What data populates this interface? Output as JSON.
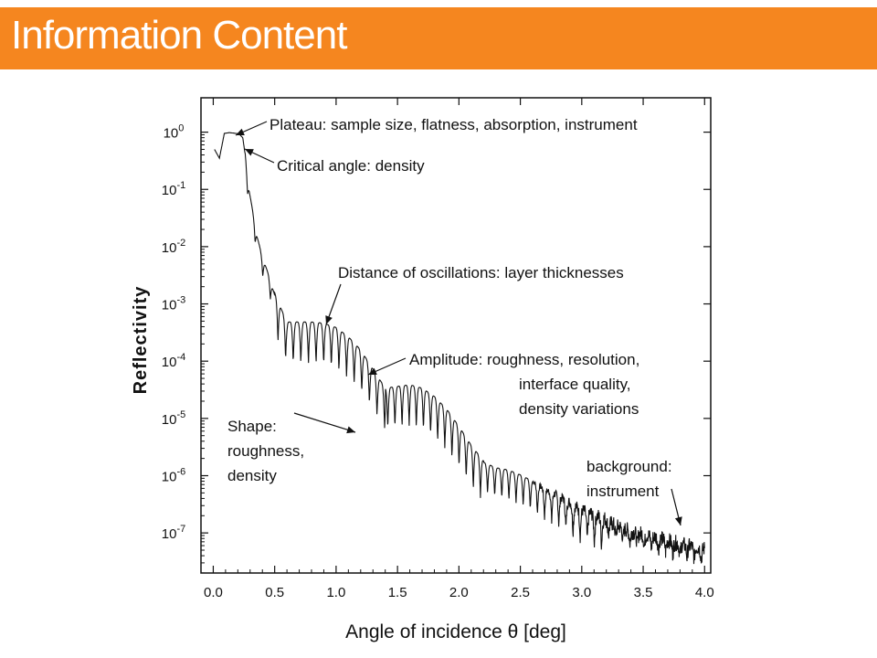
{
  "slide": {
    "title": "Information Content"
  },
  "chart_data": {
    "type": "line",
    "xlabel": "Angle of incidence  θ [deg]",
    "ylabel": "Reflectivity",
    "xlim": [
      -0.1,
      4.05
    ],
    "ylim_log10": [
      -7.7,
      0.6
    ],
    "yscale": "log",
    "x_ticks": [
      "0.0",
      "0.5",
      "1.0",
      "1.5",
      "2.0",
      "2.5",
      "3.0",
      "3.5",
      "4.0"
    ],
    "y_ticks": [
      {
        "base": "10",
        "exp": "0"
      },
      {
        "base": "10",
        "exp": "-1"
      },
      {
        "base": "10",
        "exp": "-2"
      },
      {
        "base": "10",
        "exp": "-3"
      },
      {
        "base": "10",
        "exp": "-4"
      },
      {
        "base": "10",
        "exp": "-5"
      },
      {
        "base": "10",
        "exp": "-6"
      },
      {
        "base": "10",
        "exp": "-7"
      }
    ],
    "grid": false,
    "legend": "none",
    "series": [
      {
        "x": [
          0.01,
          0.05,
          0.09,
          0.13,
          0.17,
          0.21,
          0.24,
          0.26,
          0.28,
          0.3,
          0.33,
          0.36,
          0.4,
          0.45,
          0.5,
          0.55,
          0.6,
          0.7,
          0.8,
          0.9,
          1.0,
          1.1,
          1.2,
          1.3,
          1.4,
          1.5,
          1.6,
          1.7,
          1.8,
          1.9,
          2.0,
          2.1,
          2.2,
          2.3,
          2.4,
          2.5,
          2.6,
          2.7,
          2.8,
          2.9,
          3.0,
          3.2,
          3.4,
          3.6,
          3.8,
          4.0
        ],
        "y": [
          0.5,
          0.35,
          0.95,
          0.98,
          0.96,
          0.93,
          0.8,
          0.4,
          0.15,
          0.07,
          0.03,
          0.013,
          0.006,
          0.003,
          0.0013,
          0.0007,
          0.0004,
          0.0004,
          0.0004,
          0.00038,
          0.00032,
          0.00022,
          0.00013,
          6e-05,
          2.8e-05,
          3e-05,
          3.2e-05,
          2.8e-05,
          2e-05,
          1.2e-05,
          6e-06,
          2.8e-06,
          1.5e-06,
          1.2e-06,
          1.1e-06,
          9e-07,
          7e-07,
          5e-07,
          4e-07,
          3e-07,
          2.2e-07,
          1.5e-07,
          1e-07,
          8e-08,
          6e-08,
          5e-08
        ]
      }
    ],
    "annotations": [
      {
        "id": "plateau",
        "lines": [
          "Plateau: sample size, flatness, absorption, instrument"
        ],
        "x": 0.18,
        "y": 1.0
      },
      {
        "id": "critical",
        "lines": [
          "Critical angle: density"
        ],
        "x": 0.27,
        "y": 0.9
      },
      {
        "id": "oscillations",
        "lines": [
          "Distance of oscillations: layer thicknesses"
        ],
        "x": 0.9,
        "y": 0.0005
      },
      {
        "id": "amplitude",
        "lines": [
          "Amplitude: roughness, resolution,",
          "interface quality,",
          "density variations"
        ],
        "x": 1.25,
        "y": 6e-05
      },
      {
        "id": "shape",
        "lines": [
          "Shape:",
          "roughness,",
          "density"
        ],
        "x": 1.32,
        "y": 1.1e-05
      },
      {
        "id": "background",
        "lines": [
          "background:",
          "instrument"
        ],
        "x": 3.78,
        "y": 1e-07
      }
    ]
  }
}
